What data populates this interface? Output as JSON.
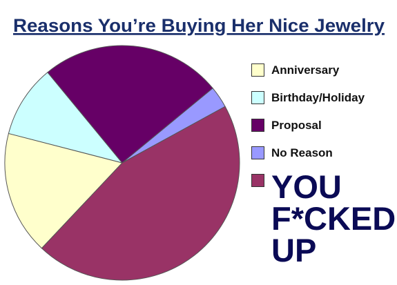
{
  "chart_data": {
    "type": "pie",
    "title": "Reasons You’re Buying Her Nice Jewelry",
    "categories": [
      "Anniversary",
      "Birthday/Holiday",
      "Proposal",
      "No Reason",
      "YOU F*CKED UP"
    ],
    "values": [
      17,
      10,
      25,
      3,
      45
    ],
    "colors": [
      "#ffffcc",
      "#ccffff",
      "#660066",
      "#9999ff",
      "#993366"
    ],
    "legend": "right"
  }
}
